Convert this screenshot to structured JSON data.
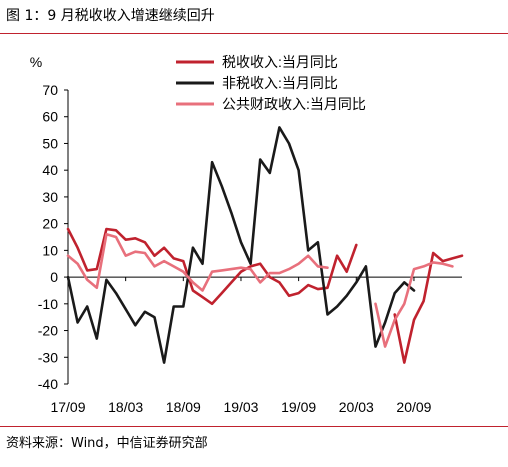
{
  "figure_title": "图 1：9 月税收收入增速继续回升",
  "source_note": "资料来源：Wind，中信证券研究部",
  "chart_data": {
    "type": "line",
    "unit_label": "%",
    "ylim": [
      -40,
      70
    ],
    "yticks": [
      -40,
      -30,
      -20,
      -10,
      0,
      10,
      20,
      30,
      40,
      50,
      60,
      70
    ],
    "xtick_labels": [
      "17/09",
      "18/03",
      "18/09",
      "19/03",
      "19/09",
      "20/03",
      "20/09"
    ],
    "xtick_index": [
      0,
      6,
      12,
      18,
      24,
      30,
      36
    ],
    "legend_position": "top-right",
    "grid": false,
    "series": [
      {
        "name": "税收收入:当月同比",
        "color": "#c0222e",
        "values": [
          18,
          11,
          2.5,
          3,
          18,
          17.5,
          14,
          14.5,
          13,
          8,
          11,
          7,
          6,
          -5,
          -7.5,
          -10,
          -6,
          -2,
          2,
          4,
          5,
          0,
          -2,
          -7,
          -6,
          -3,
          -4.5,
          -4,
          8,
          2,
          12,
          null,
          null,
          null,
          -14,
          -32,
          -16,
          -9,
          9,
          6,
          7,
          8
        ]
      },
      {
        "name": "非税收入:当月同比",
        "color": "#1a1a1a",
        "values": [
          0,
          -17,
          -11,
          -23,
          -1,
          -6,
          -12,
          -18,
          -13,
          -15,
          -32,
          -11,
          -11,
          11,
          5,
          43,
          34,
          24,
          13,
          5,
          44,
          39,
          56,
          50,
          40,
          10,
          13,
          -14,
          -11,
          -7,
          -2,
          4,
          -26,
          -17,
          -6,
          -2,
          -5
        ]
      },
      {
        "name": "公共财政收入:当月同比",
        "color": "#e8707c",
        "values": [
          8,
          5,
          -1,
          -4,
          16,
          15,
          8,
          9.5,
          9,
          4,
          6,
          4,
          2,
          -2,
          -5,
          2,
          2.5,
          3,
          3.5,
          3,
          -2,
          1.5,
          1.5,
          3,
          5,
          8,
          4,
          3.5,
          null,
          null,
          null,
          null,
          -10,
          -26,
          -16,
          -10,
          3,
          4,
          5.5,
          5,
          4
        ]
      }
    ]
  }
}
